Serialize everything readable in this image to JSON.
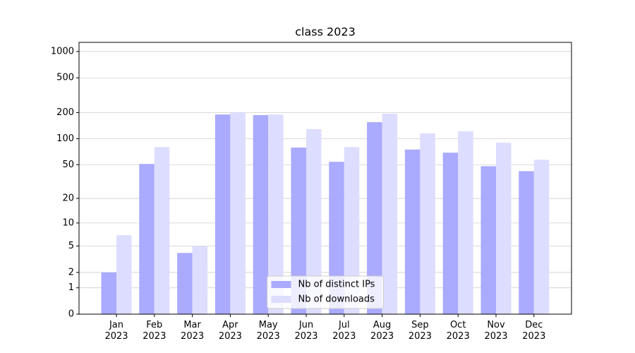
{
  "chart_data": {
    "type": "bar",
    "title": "class 2023",
    "categories": [
      "Jan\n2023",
      "Feb\n2023",
      "Mar\n2023",
      "Apr\n2023",
      "May\n2023",
      "Jun\n2023",
      "Jul\n2023",
      "Aug\n2023",
      "Sep\n2023",
      "Oct\n2023",
      "Nov\n2023",
      "Dec\n2023"
    ],
    "series": [
      {
        "name": "Nb of distinct IPs",
        "color": "#aaaaff",
        "values": [
          2,
          51,
          4,
          190,
          187,
          79,
          54,
          155,
          75,
          69,
          48,
          42
        ]
      },
      {
        "name": "Nb of downloads",
        "color": "#ddddff",
        "values": [
          7,
          80,
          5,
          200,
          190,
          129,
          80,
          194,
          115,
          122,
          90,
          57
        ]
      }
    ],
    "yscale": "log1p",
    "ylim": [
      0,
      1272
    ],
    "yticks": [
      0,
      1,
      2,
      5,
      10,
      20,
      50,
      100,
      200,
      500,
      1000
    ],
    "grid": true,
    "legend": "lower center"
  }
}
